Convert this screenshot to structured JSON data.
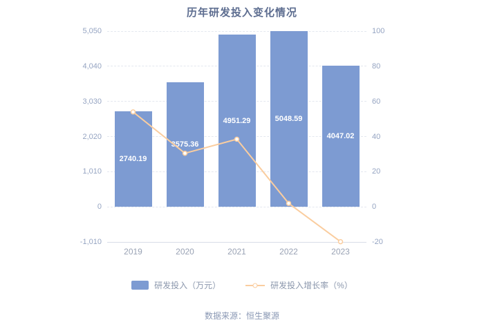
{
  "chart_data": {
    "type": "bar+line",
    "title": "历年研发投入变化情况",
    "source": "数据来源：恒生聚源",
    "categories": [
      "2019",
      "2020",
      "2021",
      "2022",
      "2023"
    ],
    "series": [
      {
        "name": "研发投入（万元）",
        "type": "bar",
        "yaxis": "left",
        "values": [
          2740.19,
          3575.36,
          4951.29,
          5048.59,
          4047.02
        ],
        "labels": [
          "2740.19",
          "3575.36",
          "4951.29",
          "5048.59",
          "4047.02"
        ],
        "color": "#7D9BD2"
      },
      {
        "name": "研发投入增长率（%）",
        "type": "line",
        "yaxis": "right",
        "values": [
          54.0,
          30.48,
          38.48,
          1.96,
          -19.84
        ],
        "color": "#FACD9F"
      }
    ],
    "left_axis": {
      "min": -1010,
      "max": 5050,
      "tick_values": [
        -1010,
        0,
        1010,
        2020,
        3030,
        4040,
        5050
      ],
      "tick_labels": [
        "-1,010",
        "0",
        "1,010",
        "2,020",
        "3,030",
        "4,040",
        "5,050"
      ]
    },
    "right_axis": {
      "min": -20,
      "max": 100,
      "tick_values": [
        -20,
        0,
        20,
        40,
        60,
        80,
        100
      ],
      "tick_labels": [
        "-20",
        "0",
        "20",
        "40",
        "60",
        "80",
        "100"
      ]
    },
    "grid": {
      "horizontal": true,
      "style": "dashed"
    },
    "legend_position": "bottom"
  }
}
